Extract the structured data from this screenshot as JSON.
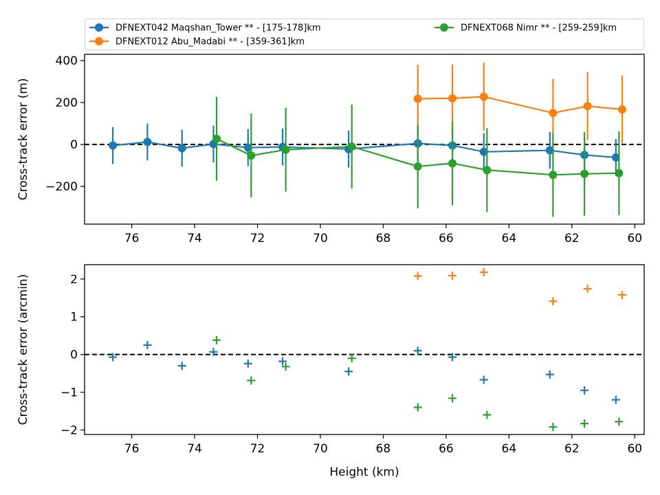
{
  "colors": {
    "blue": "#1f77b4",
    "orange": "#ff7f0e",
    "green": "#2ca02c"
  },
  "legend": {
    "placement": "above-top-panel",
    "entries": [
      {
        "label": "DFNEXT042 Maqshan_Tower **  - [175-178]km",
        "color": "#1f77b4"
      },
      {
        "label": "DFNEXT012 Abu_Madabi **  - [359-361]km",
        "color": "#ff7f0e"
      },
      {
        "label": "DFNEXT068 Nimr **  - [259-259]km",
        "color": "#2ca02c"
      }
    ]
  },
  "chart_data": [
    {
      "type": "line",
      "ylabel": "Cross-track error (m)",
      "xlabel": "",
      "xlim": [
        77.5,
        59.7
      ],
      "ylim": [
        -380,
        430
      ],
      "xticks": [
        76,
        74,
        72,
        70,
        68,
        66,
        64,
        62,
        60
      ],
      "yticks": [
        -200,
        0,
        200,
        400
      ],
      "yticklabels": [
        "−200",
        "0",
        "200",
        "400"
      ],
      "reference_line": 0,
      "series": [
        {
          "legend": 0,
          "color": "#1f77b4",
          "x": [
            76.6,
            75.5,
            74.4,
            73.4,
            72.3,
            71.2,
            69.1,
            66.9,
            65.8,
            64.8,
            62.7,
            61.6,
            60.6
          ],
          "y": [
            -5,
            12,
            -18,
            2,
            -15,
            -12,
            -22,
            5,
            -5,
            -35,
            -28,
            -50,
            -62
          ],
          "err": [
            88,
            88,
            88,
            88,
            88,
            88,
            88,
            88,
            88,
            88,
            88,
            88,
            88
          ]
        },
        {
          "legend": 1,
          "color": "#ff7f0e",
          "x": [
            66.9,
            65.8,
            64.8,
            62.6,
            61.5,
            60.4
          ],
          "y": [
            218,
            220,
            228,
            150,
            183,
            167
          ],
          "err": [
            162,
            162,
            162,
            162,
            162,
            162
          ]
        },
        {
          "legend": 2,
          "color": "#2ca02c",
          "x": [
            73.3,
            72.2,
            71.1,
            69.0,
            66.9,
            65.8,
            64.7,
            62.6,
            61.6,
            60.5
          ],
          "y": [
            27,
            -53,
            -25,
            -10,
            -105,
            -90,
            -122,
            -145,
            -140,
            -137
          ],
          "err": [
            200,
            200,
            200,
            200,
            200,
            200,
            200,
            200,
            200,
            200
          ]
        }
      ]
    },
    {
      "type": "scatter",
      "ylabel": "Cross-track error (arcmin)",
      "xlabel": "Height (km)",
      "xlim": [
        77.5,
        59.7
      ],
      "ylim": [
        -2.12,
        2.38
      ],
      "xticks": [
        76,
        74,
        72,
        70,
        68,
        66,
        64,
        62,
        60
      ],
      "yticks": [
        -2,
        -1,
        0,
        1,
        2
      ],
      "yticklabels": [
        "−2",
        "−1",
        "0",
        "1",
        "2"
      ],
      "reference_line": 0,
      "series": [
        {
          "legend": 0,
          "color": "#1f77b4",
          "x": [
            76.6,
            75.5,
            74.4,
            73.4,
            72.3,
            71.2,
            69.1,
            66.9,
            65.8,
            64.8,
            62.7,
            61.6,
            60.6
          ],
          "y": [
            -0.07,
            0.25,
            -0.3,
            0.07,
            -0.24,
            -0.18,
            -0.45,
            0.1,
            -0.07,
            -0.67,
            -0.53,
            -0.95,
            -1.2
          ]
        },
        {
          "legend": 1,
          "color": "#ff7f0e",
          "x": [
            66.9,
            65.8,
            64.8,
            62.6,
            61.5,
            60.4
          ],
          "y": [
            2.08,
            2.09,
            2.18,
            1.41,
            1.74,
            1.58
          ]
        },
        {
          "legend": 2,
          "color": "#2ca02c",
          "x": [
            73.3,
            72.2,
            71.1,
            69.0,
            66.9,
            65.8,
            64.7,
            62.6,
            61.6,
            60.5
          ],
          "y": [
            0.38,
            -0.69,
            -0.32,
            -0.1,
            -1.4,
            -1.16,
            -1.6,
            -1.92,
            -1.83,
            -1.78
          ]
        }
      ]
    }
  ]
}
